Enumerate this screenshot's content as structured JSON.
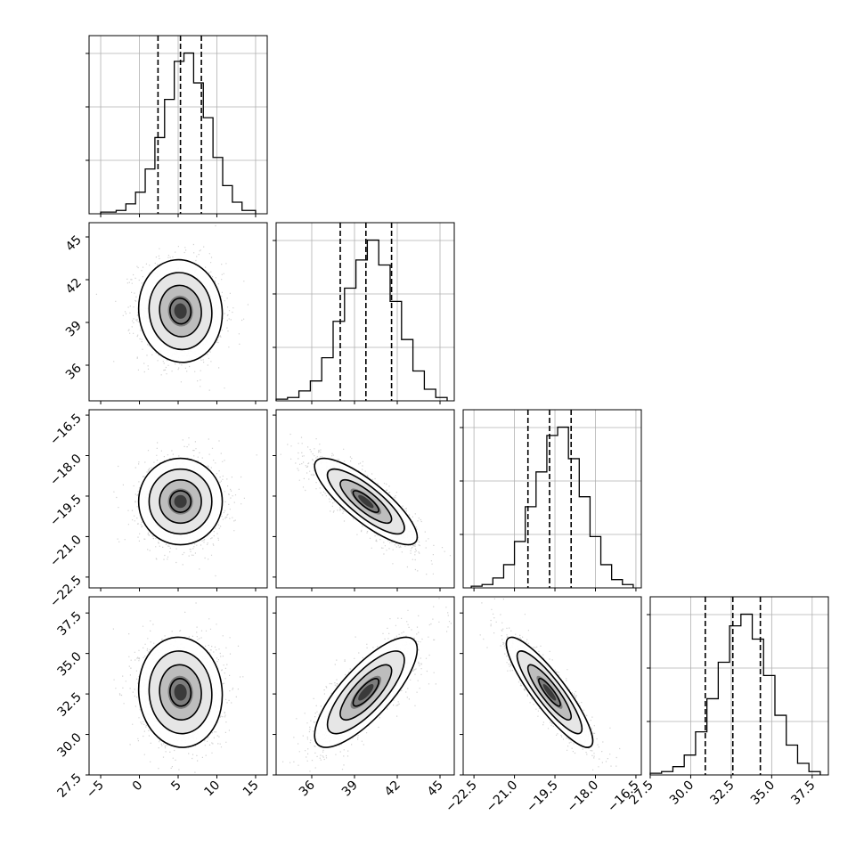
{
  "chart_data": {
    "type": "corner",
    "title": "",
    "grid": true,
    "parameters": [
      {
        "index": 0,
        "range": [
          -6.5,
          16.5
        ],
        "ticks": [
          -5,
          0,
          5,
          10,
          15
        ],
        "tick_labels": [
          "−5",
          "0",
          "5",
          "10",
          "15"
        ],
        "quantiles": [
          2.4,
          5.3,
          8.0
        ],
        "histogram": {
          "bin_edges": [
            -5.0,
            -3.0,
            -1.75,
            -0.5,
            0.75,
            2.0,
            3.25,
            4.5,
            5.75,
            7.0,
            8.25,
            9.5,
            10.75,
            12.0,
            13.25,
            15.0
          ],
          "counts": [
            0.01,
            0.02,
            0.06,
            0.13,
            0.27,
            0.46,
            0.69,
            0.92,
            0.97,
            0.79,
            0.58,
            0.34,
            0.17,
            0.07,
            0.02
          ]
        }
      },
      {
        "index": 1,
        "range": [
          33.5,
          46.0
        ],
        "ticks": [
          36,
          39,
          42,
          45
        ],
        "tick_labels": [
          "36",
          "39",
          "42",
          "45"
        ],
        "quantiles": [
          38.0,
          39.8,
          41.6
        ],
        "histogram": {
          "bin_edges": [
            33.5,
            34.3,
            35.1,
            35.9,
            36.7,
            37.5,
            38.3,
            39.1,
            39.9,
            40.7,
            41.5,
            42.3,
            43.1,
            43.9,
            44.7,
            45.5
          ],
          "counts": [
            0.01,
            0.02,
            0.06,
            0.12,
            0.26,
            0.48,
            0.68,
            0.85,
            0.97,
            0.82,
            0.6,
            0.37,
            0.18,
            0.07,
            0.02
          ]
        }
      },
      {
        "index": 2,
        "range": [
          -22.9,
          -16.3
        ],
        "ticks": [
          -22.5,
          -21.0,
          -19.5,
          -18.0,
          -16.5
        ],
        "tick_labels": [
          "−22.5",
          "−21.0",
          "−19.5",
          "−18.0",
          "−16.5"
        ],
        "quantiles": [
          -20.5,
          -19.7,
          -18.9
        ],
        "histogram": {
          "bin_edges": [
            -22.6,
            -22.2,
            -21.8,
            -21.4,
            -21.0,
            -20.6,
            -20.2,
            -19.8,
            -19.4,
            -19.0,
            -18.6,
            -18.2,
            -17.8,
            -17.4,
            -17.0,
            -16.6
          ],
          "counts": [
            0.01,
            0.02,
            0.06,
            0.14,
            0.28,
            0.49,
            0.7,
            0.92,
            0.97,
            0.78,
            0.55,
            0.31,
            0.14,
            0.05,
            0.02
          ]
        }
      },
      {
        "index": 3,
        "range": [
          27.5,
          38.5
        ],
        "ticks": [
          27.5,
          30.0,
          32.5,
          35.0,
          37.5
        ],
        "tick_labels": [
          "27.5",
          "30.0",
          "32.5",
          "35.0",
          "37.5"
        ],
        "quantiles": [
          30.9,
          32.6,
          34.3
        ],
        "histogram": {
          "bin_edges": [
            27.5,
            28.2,
            28.9,
            29.6,
            30.3,
            31.0,
            31.7,
            32.4,
            33.1,
            33.8,
            34.5,
            35.2,
            35.9,
            36.6,
            37.3,
            38.0
          ],
          "counts": [
            0.01,
            0.02,
            0.05,
            0.12,
            0.26,
            0.46,
            0.68,
            0.9,
            0.97,
            0.82,
            0.6,
            0.36,
            0.18,
            0.07,
            0.02
          ]
        }
      }
    ],
    "joint": [
      {
        "x": 0,
        "y": 1,
        "mean": [
          5.3,
          39.8
        ],
        "sd": [
          2.7,
          1.8
        ],
        "corr": -0.05
      },
      {
        "x": 0,
        "y": 2,
        "mean": [
          5.3,
          -19.7
        ],
        "sd": [
          2.7,
          0.8
        ],
        "corr": 0.0
      },
      {
        "x": 1,
        "y": 2,
        "mean": [
          39.8,
          -19.7
        ],
        "sd": [
          1.8,
          0.8
        ],
        "corr": -0.82
      },
      {
        "x": 0,
        "y": 3,
        "mean": [
          5.3,
          32.6
        ],
        "sd": [
          2.7,
          1.7
        ],
        "corr": -0.05
      },
      {
        "x": 1,
        "y": 3,
        "mean": [
          39.8,
          32.6
        ],
        "sd": [
          1.8,
          1.7
        ],
        "corr": 0.78
      },
      {
        "x": 2,
        "y": 3,
        "mean": [
          -19.7,
          32.6
        ],
        "sd": [
          0.8,
          1.7
        ],
        "corr": -0.88
      }
    ]
  }
}
